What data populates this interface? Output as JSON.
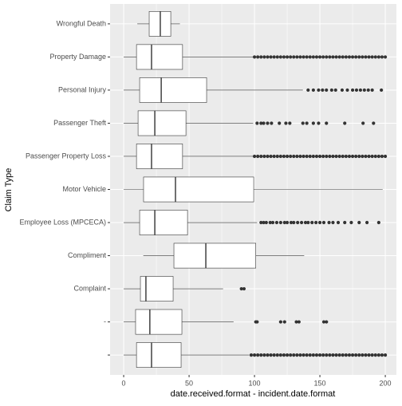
{
  "chart_data": {
    "type": "boxplot",
    "orientation": "horizontal",
    "x_label": "date.received.format - incident.date.format",
    "y_label": "Claim Type",
    "categories": [
      "Wrongful Death",
      "Property Damage",
      "Personal Injury",
      "Passenger Theft",
      "Passenger Property Loss",
      "Motor Vehicle",
      "Employee Loss (MPCECA)",
      "Compliment",
      "Complaint",
      "-",
      null
    ],
    "boxes": [
      {
        "whislo": 10.4,
        "q1": 19.5,
        "med": 28,
        "q3": 36,
        "whishi": 43,
        "outliers": []
      },
      {
        "whislo": 0,
        "q1": 9.8,
        "med": 21.3,
        "q3": 45,
        "whishi": 99,
        "outliers": [
          100,
          102.5,
          105,
          107.5,
          110,
          112.5,
          115,
          117.5,
          120,
          122.5,
          125,
          127.5,
          130,
          132.5,
          135,
          137.5,
          140,
          142.5,
          145,
          147.5,
          150,
          152.5,
          155,
          157.5,
          160,
          162.5,
          165,
          167.5,
          170,
          172.5,
          175,
          177.5,
          180,
          182.5,
          185,
          187.5,
          190,
          192.5,
          195,
          197.5,
          200
        ]
      },
      {
        "whislo": 0,
        "q1": 12.2,
        "med": 28.7,
        "q3": 63.4,
        "whishi": 137,
        "outliers": [
          141,
          145,
          149,
          152,
          155,
          159,
          162,
          167,
          171,
          175,
          178,
          181,
          184,
          187,
          190,
          197
        ]
      },
      {
        "whislo": 0,
        "q1": 11,
        "med": 23.8,
        "q3": 47.6,
        "whishi": 99,
        "outliers": [
          102,
          105,
          107,
          110,
          113,
          119,
          124,
          127,
          137,
          140,
          145,
          149,
          155,
          169,
          183,
          191
        ]
      },
      {
        "whislo": 0,
        "q1": 9.8,
        "med": 21.3,
        "q3": 45,
        "whishi": 99,
        "outliers": [
          100,
          102.5,
          105,
          107.5,
          110,
          112.5,
          115,
          117.5,
          120,
          122.5,
          125,
          127.5,
          130,
          132.5,
          135,
          137.5,
          140,
          142.5,
          145,
          147.5,
          150,
          152.5,
          155,
          157.5,
          160,
          162.5,
          165,
          167.5,
          170,
          172.5,
          175,
          177.5,
          180,
          182.5,
          185,
          187.5,
          190,
          192.5,
          195,
          197.5,
          200
        ]
      },
      {
        "whislo": 0,
        "q1": 15.2,
        "med": 39.6,
        "q3": 99.4,
        "whishi": 198,
        "outliers": []
      },
      {
        "whislo": 0,
        "q1": 12.2,
        "med": 23.8,
        "q3": 48.8,
        "whishi": 102,
        "outliers": [
          105,
          107,
          109,
          112,
          114,
          117,
          120,
          123,
          125,
          128,
          130,
          133,
          136,
          139,
          141,
          144,
          147,
          150,
          153,
          157,
          160,
          164,
          169,
          174,
          180,
          186,
          195
        ]
      },
      {
        "whislo": 15,
        "q1": 38.4,
        "med": 62.8,
        "q3": 101,
        "whishi": 138,
        "outliers": []
      },
      {
        "whislo": 0,
        "q1": 12.8,
        "med": 17,
        "q3": 37.8,
        "whishi": 76,
        "outliers": [
          90,
          92
        ]
      },
      {
        "whislo": 0,
        "q1": 9.1,
        "med": 20,
        "q3": 44.5,
        "whishi": 84,
        "outliers": [
          101,
          102,
          120,
          123,
          132,
          134,
          153,
          155
        ]
      },
      {
        "whislo": 0,
        "q1": 9.8,
        "med": 21.3,
        "q3": 43.9,
        "whishi": 96,
        "outliers": [
          97.5,
          100,
          102.5,
          105,
          107.5,
          110,
          112.5,
          115,
          117.5,
          120,
          122.5,
          125,
          127.5,
          130,
          132.5,
          135,
          137.5,
          140,
          142.5,
          145,
          147.5,
          150,
          152.5,
          155,
          157.5,
          160,
          162.5,
          165,
          167.5,
          170,
          172.5,
          175,
          177.5,
          180,
          182.5,
          185,
          187.5,
          190,
          192.5,
          195,
          197.5,
          200
        ]
      }
    ],
    "xlim": [
      -10.4,
      208.5
    ],
    "xticks": [
      0,
      50,
      100,
      150,
      200
    ],
    "xminorticks": [
      25,
      75,
      125,
      175
    ],
    "grid": true,
    "box_color": "#ffffff",
    "line_color": "#333333",
    "background": "#ebebeb"
  }
}
